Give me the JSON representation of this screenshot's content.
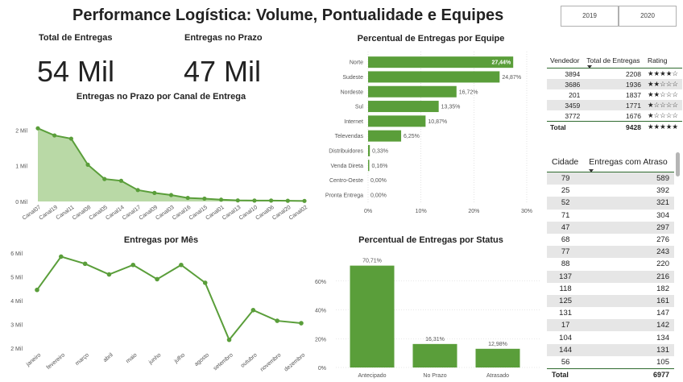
{
  "header": {
    "title": "Performance Logística: Volume, Pontualidade e Equipes"
  },
  "slicer": {
    "years": [
      "2019",
      "2020"
    ]
  },
  "kpis": [
    {
      "label": "Total de Entregas",
      "value": "54 Mil"
    },
    {
      "label": "Entregas no Prazo",
      "value": "47 Mil"
    }
  ],
  "colors": {
    "accent": "#5a9e3a",
    "area_fill": "#b9d9a6",
    "grid": "#d0d0d0",
    "table_alt": "#e6e6e6",
    "table_rule": "#2f6b2f"
  },
  "chart_data": [
    {
      "id": "canal",
      "type": "area",
      "title": "Entregas no Prazo por Canal de Entrega",
      "categories": [
        "Canal07",
        "Canal19",
        "Canal11",
        "Canal08",
        "Canal05",
        "Canal14",
        "Canal17",
        "Canal09",
        "Canal03",
        "Canal16",
        "Canal15",
        "Canal01",
        "Canal13",
        "Canal10",
        "Canal06",
        "Canal20",
        "Canal02"
      ],
      "values": [
        2050,
        1850,
        1760,
        1030,
        630,
        580,
        320,
        240,
        180,
        100,
        80,
        50,
        30,
        25,
        25,
        20,
        15
      ],
      "ylim": [
        0,
        2100
      ],
      "y_ticks": [
        {
          "v": 0,
          "label": "0 Mil"
        },
        {
          "v": 1000,
          "label": "1 Mil"
        },
        {
          "v": 2000,
          "label": "2 Mil"
        }
      ],
      "grid": false
    },
    {
      "id": "mes",
      "type": "line",
      "title": "Entregas por Mês",
      "categories": [
        "janeiro",
        "fevereiro",
        "março",
        "abril",
        "maio",
        "junho",
        "julho",
        "agosto",
        "setembro",
        "outubro",
        "novembro",
        "dezembro"
      ],
      "values": [
        4450,
        5850,
        5550,
        5100,
        5500,
        4900,
        5500,
        4750,
        2350,
        3600,
        3150,
        3050
      ],
      "ylim": [
        2000,
        6000
      ],
      "y_ticks": [
        {
          "v": 2000,
          "label": "2 Mil"
        },
        {
          "v": 3000,
          "label": "3 Mil"
        },
        {
          "v": 4000,
          "label": "4 Mil"
        },
        {
          "v": 5000,
          "label": "5 Mil"
        },
        {
          "v": 6000,
          "label": "6 Mil"
        }
      ],
      "grid": false
    },
    {
      "id": "equipe",
      "type": "bar",
      "orientation": "horizontal",
      "title": "Percentual de Entregas por Equipe",
      "categories": [
        "Norte",
        "Sudeste",
        "Nordeste",
        "Sul",
        "Internet",
        "Televendas",
        "Distribuidores",
        "Venda Direta",
        "Centro-Oeste",
        "Pronta Entrega"
      ],
      "values": [
        27.44,
        24.87,
        16.72,
        13.35,
        10.87,
        6.25,
        0.33,
        0.16,
        0.0,
        0.0
      ],
      "labels": [
        "27,44%",
        "24,87%",
        "16,72%",
        "13,35%",
        "10,87%",
        "6,25%",
        "0,33%",
        "0,16%",
        "0,00%",
        "0,00%"
      ],
      "xlim": [
        0,
        30
      ],
      "x_ticks": [
        {
          "v": 0,
          "label": "0%"
        },
        {
          "v": 10,
          "label": "10%"
        },
        {
          "v": 20,
          "label": "20%"
        },
        {
          "v": 30,
          "label": "30%"
        }
      ],
      "grid": true
    },
    {
      "id": "status",
      "type": "bar",
      "title": "Percentual de Entregas por Status",
      "categories": [
        "Antecipado",
        "No Prazo",
        "Atrasado"
      ],
      "values": [
        70.71,
        16.31,
        12.98
      ],
      "labels": [
        "70,71%",
        "16,31%",
        "12,98%"
      ],
      "ylim": [
        0,
        80
      ],
      "y_ticks": [
        {
          "v": 0,
          "label": "0%"
        },
        {
          "v": 20,
          "label": "20%"
        },
        {
          "v": 40,
          "label": "40%"
        },
        {
          "v": 60,
          "label": "60%"
        }
      ],
      "grid": true
    }
  ],
  "vendor_table": {
    "headers": [
      "Vendedor",
      "Total de Entregas",
      "Rating"
    ],
    "rows": [
      [
        "3894",
        "2208",
        "★★★★☆"
      ],
      [
        "3686",
        "1936",
        "★★☆☆☆"
      ],
      [
        "201",
        "1837",
        "★★☆☆☆"
      ],
      [
        "3459",
        "1771",
        "★☆☆☆☆"
      ],
      [
        "3772",
        "1676",
        "★☆☆☆☆"
      ]
    ],
    "total": [
      "Total",
      "9428",
      "★★★★★"
    ]
  },
  "city_table": {
    "headers": [
      "Cidade",
      "Entregas com Atraso"
    ],
    "rows": [
      [
        "79",
        "589"
      ],
      [
        "25",
        "392"
      ],
      [
        "52",
        "321"
      ],
      [
        "71",
        "304"
      ],
      [
        "47",
        "297"
      ],
      [
        "68",
        "276"
      ],
      [
        "77",
        "243"
      ],
      [
        "88",
        "220"
      ],
      [
        "137",
        "216"
      ],
      [
        "118",
        "182"
      ],
      [
        "125",
        "161"
      ],
      [
        "131",
        "147"
      ],
      [
        "17",
        "142"
      ],
      [
        "104",
        "134"
      ],
      [
        "144",
        "131"
      ],
      [
        "56",
        "105"
      ]
    ],
    "total": [
      "Total",
      "6977"
    ]
  }
}
